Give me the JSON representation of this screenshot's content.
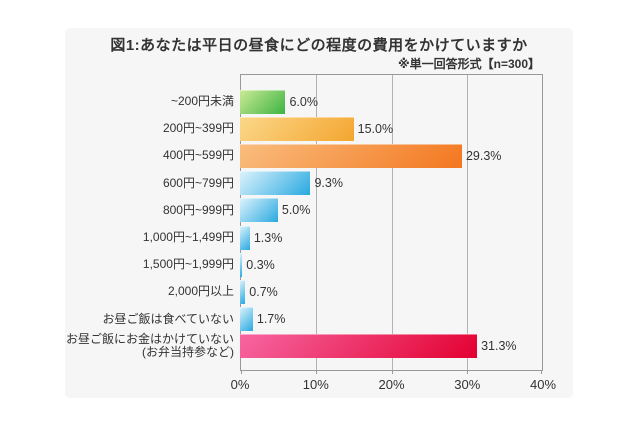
{
  "header": {
    "title": "図1:あなたは平日の昼食にどの程度の費用をかけていますか",
    "note": "※単一回答形式【n=300】"
  },
  "colors": {
    "panel_bg": "#f6f6f6",
    "plot_border": "#999999",
    "gridline": "#b3b3b3",
    "text": "#333333"
  },
  "chart_data": {
    "type": "bar",
    "orientation": "horizontal",
    "title": "図1:あなたは平日の昼食にどの程度の費用をかけていますか",
    "note": "※単一回答形式【n=300】",
    "categories": [
      "~200円未満",
      "200円~399円",
      "400円~599円",
      "600円~799円",
      "800円~999円",
      "1,000円~1,499円",
      "1,500円~1,999円",
      "2,000円以上",
      "お昼ご飯は食べていない",
      "お昼ご飯にお金はかけていない\n(お弁当持参など)"
    ],
    "values": [
      6.0,
      15.0,
      29.3,
      9.3,
      5.0,
      1.3,
      0.3,
      0.7,
      1.7,
      31.3
    ],
    "value_labels": [
      "6.0%",
      "15.0%",
      "29.3%",
      "9.3%",
      "5.0%",
      "1.3%",
      "0.3%",
      "0.7%",
      "1.7%",
      "31.3%"
    ],
    "xlim": [
      0,
      40
    ],
    "x_tick_labels": [
      "0%",
      "10%",
      "20%",
      "30%",
      "40%"
    ],
    "grid": true,
    "legend": false,
    "bar_gradients": [
      [
        "#cdea96",
        "#3db442"
      ],
      [
        "#fbd88a",
        "#f4a52f"
      ],
      [
        "#f9bd7e",
        "#f3771f"
      ],
      [
        "#ddf3fc",
        "#29a9e0"
      ],
      [
        "#ddf3fc",
        "#29a9e0"
      ],
      [
        "#ddf3fc",
        "#29a9e0"
      ],
      [
        "#ddf3fc",
        "#29a9e0"
      ],
      [
        "#ddf3fc",
        "#29a9e0"
      ],
      [
        "#ddf3fc",
        "#29a9e0"
      ],
      [
        "#f766a2",
        "#e30030"
      ]
    ]
  }
}
